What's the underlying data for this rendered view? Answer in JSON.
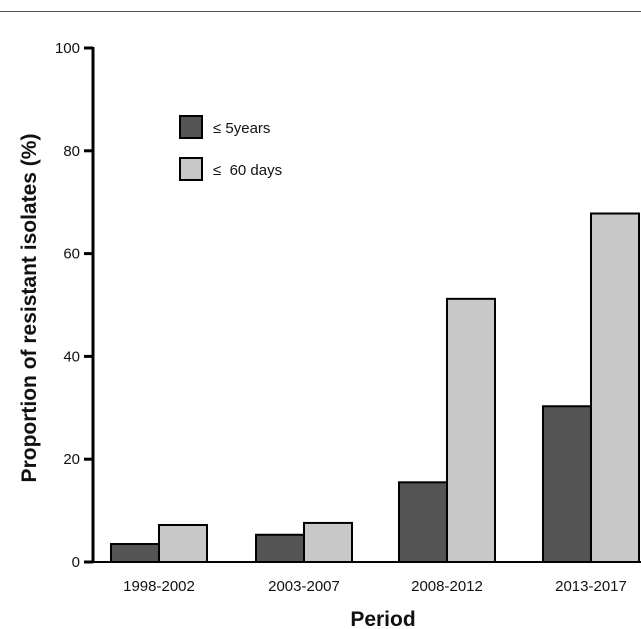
{
  "chart_data": {
    "type": "bar",
    "title": "",
    "xlabel": "Period",
    "ylabel": "Proportion of resistant isolates (%)",
    "ylim": [
      0,
      100
    ],
    "yticks": [
      0,
      20,
      40,
      60,
      80,
      100
    ],
    "categories": [
      "1998-2002",
      "2003-2007",
      "2008-2012",
      "2013-2017"
    ],
    "series": [
      {
        "name": "≤ 5years",
        "color": "#555555",
        "values": [
          3.5,
          5.3,
          15.5,
          30.3
        ]
      },
      {
        "name": "≤  60 days",
        "color": "#c8c8c8",
        "values": [
          7.2,
          7.6,
          51.2,
          67.8
        ]
      }
    ],
    "legend_position": "top-left",
    "grid": false
  }
}
